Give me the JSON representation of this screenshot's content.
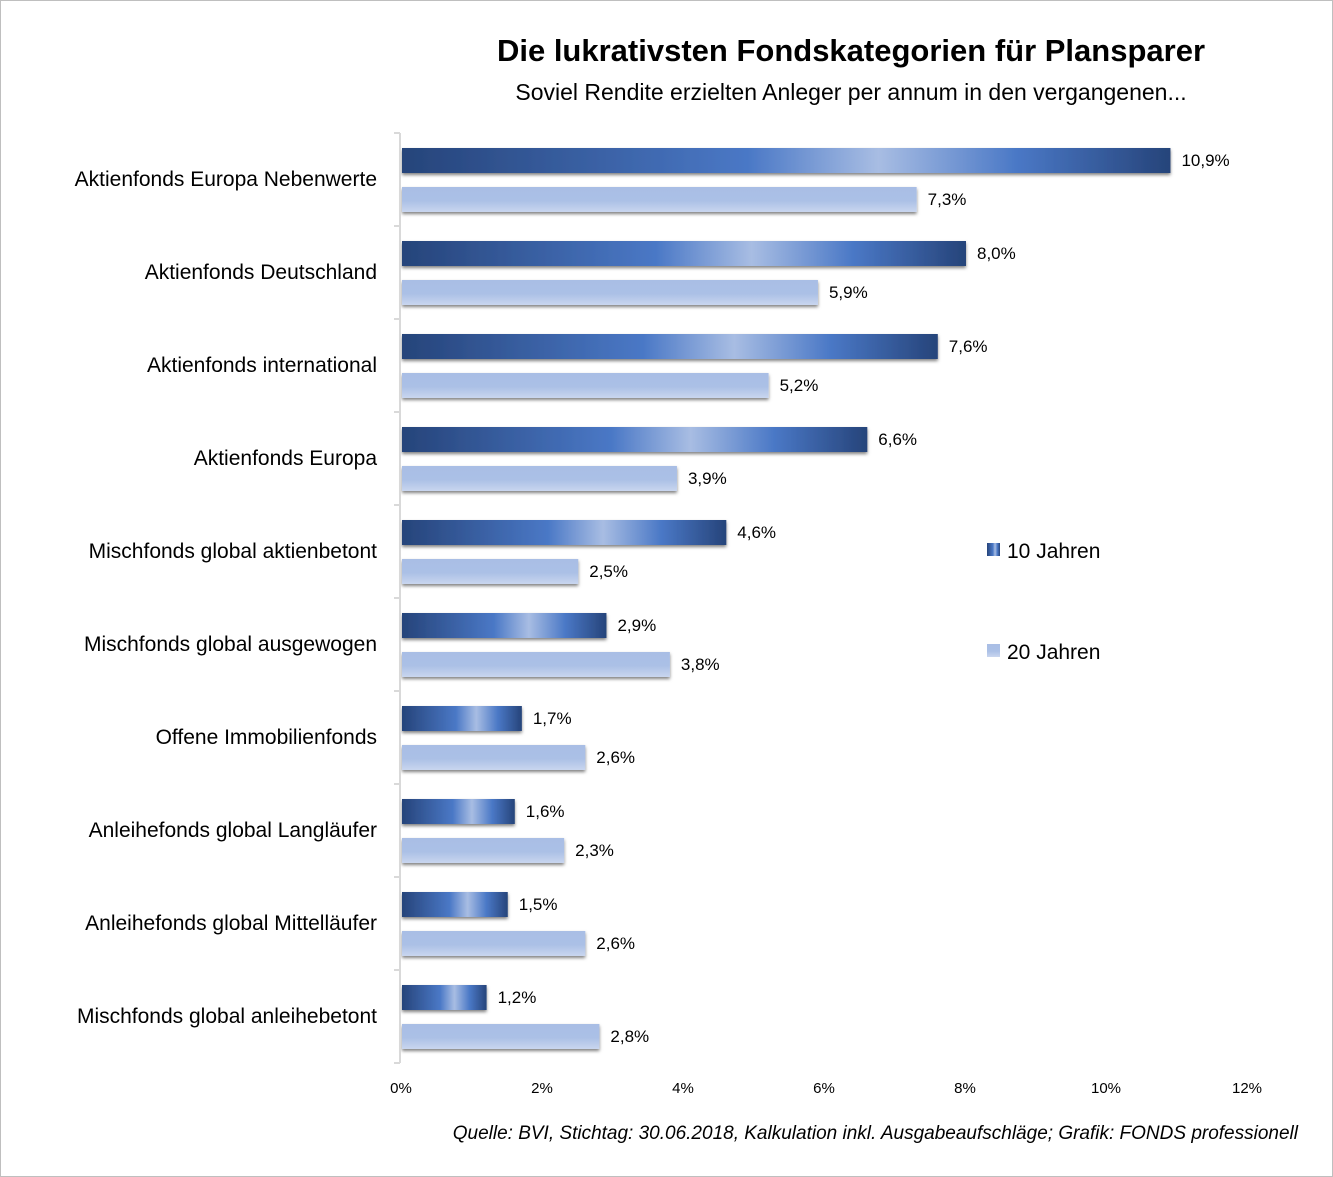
{
  "chart_data": {
    "type": "bar",
    "orientation": "horizontal",
    "title": "Die lukrativsten Fondskategorien für Plansparer",
    "subtitle": "Soviel Rendite erzielten Anleger per annum in den vergangenen...",
    "categories": [
      "Aktienfonds Europa Nebenwerte",
      "Aktienfonds Deutschland",
      "Aktienfonds international",
      "Aktienfonds Europa",
      "Mischfonds global aktienbetont",
      "Mischfonds global ausgewogen",
      "Offene Immobilienfonds",
      "Anleihefonds global Langläufer",
      "Anleihefonds global Mittelläufer",
      "Mischfonds global anleihebetont"
    ],
    "series": [
      {
        "name": "10 Jahren",
        "color": "#2f5597",
        "values": [
          10.9,
          8.0,
          7.6,
          6.6,
          4.6,
          2.9,
          1.7,
          1.6,
          1.5,
          1.2
        ],
        "labels": [
          "10,9%",
          "8,0%",
          "7,6%",
          "6,6%",
          "4,6%",
          "2,9%",
          "1,7%",
          "1,6%",
          "1,5%",
          "1,2%"
        ]
      },
      {
        "name": "20 Jahren",
        "color": "#adc1e6",
        "values": [
          7.3,
          5.9,
          5.2,
          3.9,
          2.5,
          3.8,
          2.6,
          2.3,
          2.6,
          2.8
        ],
        "labels": [
          "7,3%",
          "5,9%",
          "5,2%",
          "3,9%",
          "2,5%",
          "3,8%",
          "2,6%",
          "2,3%",
          "2,6%",
          "2,8%"
        ]
      }
    ],
    "xlim": [
      0,
      12
    ],
    "xticks": [
      "0%",
      "2%",
      "4%",
      "6%",
      "8%",
      "10%",
      "12%"
    ],
    "grid": false,
    "legend": "right",
    "xlabel": "",
    "ylabel": ""
  },
  "source": "Quelle:  BVI, Stichtag: 30.06.2018, Kalkulation inkl.  Ausgabeaufschläge; Grafik: FONDS professionell"
}
